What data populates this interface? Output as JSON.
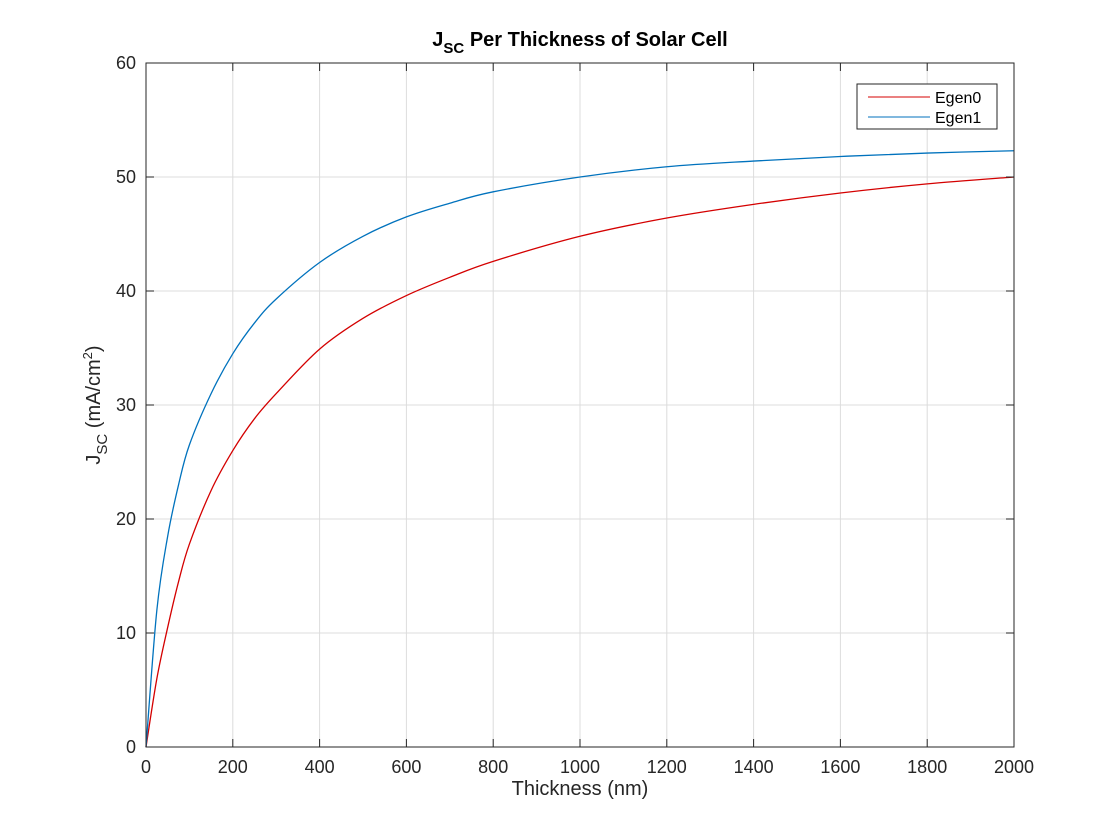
{
  "chart_data": {
    "type": "line",
    "title": {
      "main": "J",
      "sub": "SC",
      "rest": " Per Thickness of Solar Cell"
    },
    "xlabel": "Thickness (nm)",
    "ylabel": {
      "main": "J",
      "sub": "SC",
      "rest": " (mA/cm",
      "sup": "2",
      "end": ")"
    },
    "xlim": [
      0,
      2000
    ],
    "ylim": [
      0,
      60
    ],
    "xticks": [
      0,
      200,
      400,
      600,
      800,
      1000,
      1200,
      1400,
      1600,
      1800,
      2000
    ],
    "yticks": [
      0,
      10,
      20,
      30,
      40,
      50,
      60
    ],
    "grid": true,
    "legend_position": "top-right",
    "series": [
      {
        "name": "Egen0",
        "color": "#d40000",
        "x": [
          0,
          25,
          50,
          75,
          100,
          150,
          200,
          250,
          300,
          400,
          500,
          600,
          700,
          800,
          1000,
          1200,
          1400,
          1600,
          1800,
          2000
        ],
        "y": [
          0,
          6.0,
          10.5,
          14.5,
          17.8,
          22.5,
          26.0,
          28.8,
          31.0,
          34.9,
          37.6,
          39.6,
          41.2,
          42.6,
          44.8,
          46.4,
          47.6,
          48.6,
          49.4,
          50.0
        ]
      },
      {
        "name": "Egen1",
        "color": "#0072bd",
        "x": [
          0,
          25,
          50,
          75,
          100,
          150,
          200,
          250,
          300,
          400,
          500,
          600,
          700,
          800,
          1000,
          1200,
          1400,
          1600,
          1800,
          2000
        ],
        "y": [
          0,
          12.0,
          18.5,
          23.0,
          26.5,
          31.0,
          34.5,
          37.2,
          39.3,
          42.5,
          44.8,
          46.5,
          47.7,
          48.7,
          50.0,
          50.9,
          51.4,
          51.8,
          52.1,
          52.3
        ]
      }
    ]
  }
}
